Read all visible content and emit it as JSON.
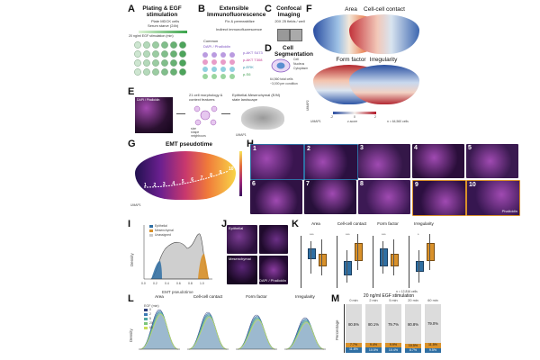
{
  "panels": {
    "A": {
      "label": "A",
      "title": "Plating & EGF stimulation",
      "note1": "Plate MDCK cells",
      "note2": "Serum starve (24h)",
      "note3": "20 ng/ml EGF stimulation (min)",
      "times": [
        "0",
        "2",
        "5",
        "10",
        "20",
        "60"
      ],
      "rows": [
        "A",
        "B",
        "C",
        "D"
      ]
    },
    "B": {
      "label": "B",
      "title": "Extensible Immunofluorescence",
      "note1": "Fix & permeabilize",
      "note2": "Indirect immunofluorescence",
      "note3": "Common",
      "markers": [
        "p-AKT S473",
        "p-AKT T308",
        "p-ERK",
        "p-S6"
      ],
      "common": "DAPI / Phalloidin"
    },
    "C": {
      "label": "C",
      "title": "Confocal Imaging",
      "note": "20X 25 fields / well"
    },
    "D": {
      "label": "D",
      "title": "Cell Segmentation",
      "legend": [
        "Cell",
        "Nucleus",
        "Cytoplasm"
      ],
      "count1": "64,560 total cells",
      "count2": "~3,000 per condition"
    },
    "E": {
      "label": "E",
      "inset": "DAPI / Phalloidin",
      "step1": "21 cell morphology & context features",
      "feat": [
        "size",
        "shape",
        "neighbours"
      ],
      "step2": "Epithelial-Mesenchymal (E/M) state landscape",
      "umap1": "UMAP1",
      "umap2": "UMAP2"
    },
    "F": {
      "label": "F",
      "maps": [
        "Area",
        "Cell-cell contact",
        "Form factor",
        "Irregularity"
      ],
      "zscore": "z-score",
      "ticks": [
        "-2",
        "0",
        "2"
      ],
      "n": "n = 64,560 cells",
      "umap1": "UMAP1",
      "umap2": "UMAP2"
    },
    "G": {
      "label": "G",
      "title": "EMT pseudotime",
      "points": [
        "1",
        "2",
        "3",
        "4",
        "5",
        "6",
        "7",
        "8",
        "9",
        "10"
      ],
      "umap1": "UMAP1",
      "umap2": "UMAP2"
    },
    "H": {
      "label": "H",
      "tiles": [
        "1",
        "2",
        "3",
        "4",
        "5",
        "6",
        "7",
        "8",
        "9",
        "10"
      ],
      "phalloidin": "Phalloidin"
    },
    "I": {
      "label": "I",
      "legend": [
        "Epithelial",
        "Mesenchymal",
        "Unassigned"
      ],
      "xlabel": "EMT pseudotime",
      "ylabel": "Density",
      "xticks": [
        "0.0",
        "0.2",
        "0.4",
        "0.6",
        "0.8",
        "1.0"
      ]
    },
    "J": {
      "label": "J",
      "tag1": "Epithelial",
      "tag2": "Mesenchymal",
      "tag3": "DAPI / Phalloidin"
    },
    "K": {
      "label": "K",
      "cols": [
        "Area",
        "Cell-cell contact",
        "Form factor",
        "Irregularity"
      ],
      "sig": [
        "***",
        "***",
        "***",
        "*"
      ],
      "n": "n = 12,816 cells"
    },
    "L": {
      "label": "L",
      "cols": [
        "Area",
        "Cell-cell contact",
        "Form factor",
        "Irregularity"
      ],
      "ylabel": "Density",
      "legend_title": "EGF (min)",
      "legend": [
        "0",
        "2",
        "5",
        "20",
        "60"
      ]
    },
    "M": {
      "label": "M",
      "title": "20 ng/ml EGF stimulation",
      "ylabel": "Percentage",
      "times": [
        "0 min",
        "2 min",
        "5 min",
        "20 min",
        "60 min"
      ],
      "unassigned": [
        "80.5%",
        "80.1%",
        "79.7%",
        "80.8%",
        "79.0%"
      ],
      "mesenchymal": [
        "7.7%",
        "9.4%",
        "9.9%",
        "10.5%",
        "11.5%"
      ],
      "epithelial": [
        "11.8%",
        "10.5%",
        "10.4%",
        "8.7%",
        "9.5%"
      ]
    }
  },
  "colors": {
    "epithelial": "#2f6fa3",
    "mesenchymal": "#d9912a",
    "unassigned": "#c9c9c9",
    "magenta": "#d23bc8",
    "teal": "#5fb6a8"
  },
  "chart_data": [
    {
      "type": "bar",
      "title": "20 ng/ml EGF stimulation",
      "ylabel": "Percentage",
      "categories": [
        "0 min",
        "2 min",
        "5 min",
        "20 min",
        "60 min"
      ],
      "series": [
        {
          "name": "Epithelial",
          "values": [
            11.8,
            10.5,
            10.4,
            8.7,
            9.5
          ]
        },
        {
          "name": "Mesenchymal",
          "values": [
            7.7,
            9.4,
            9.9,
            10.5,
            11.5
          ]
        },
        {
          "name": "Unassigned",
          "values": [
            80.5,
            80.1,
            79.7,
            80.8,
            79.0
          ]
        }
      ],
      "ylim": [
        0,
        100
      ]
    }
  ]
}
